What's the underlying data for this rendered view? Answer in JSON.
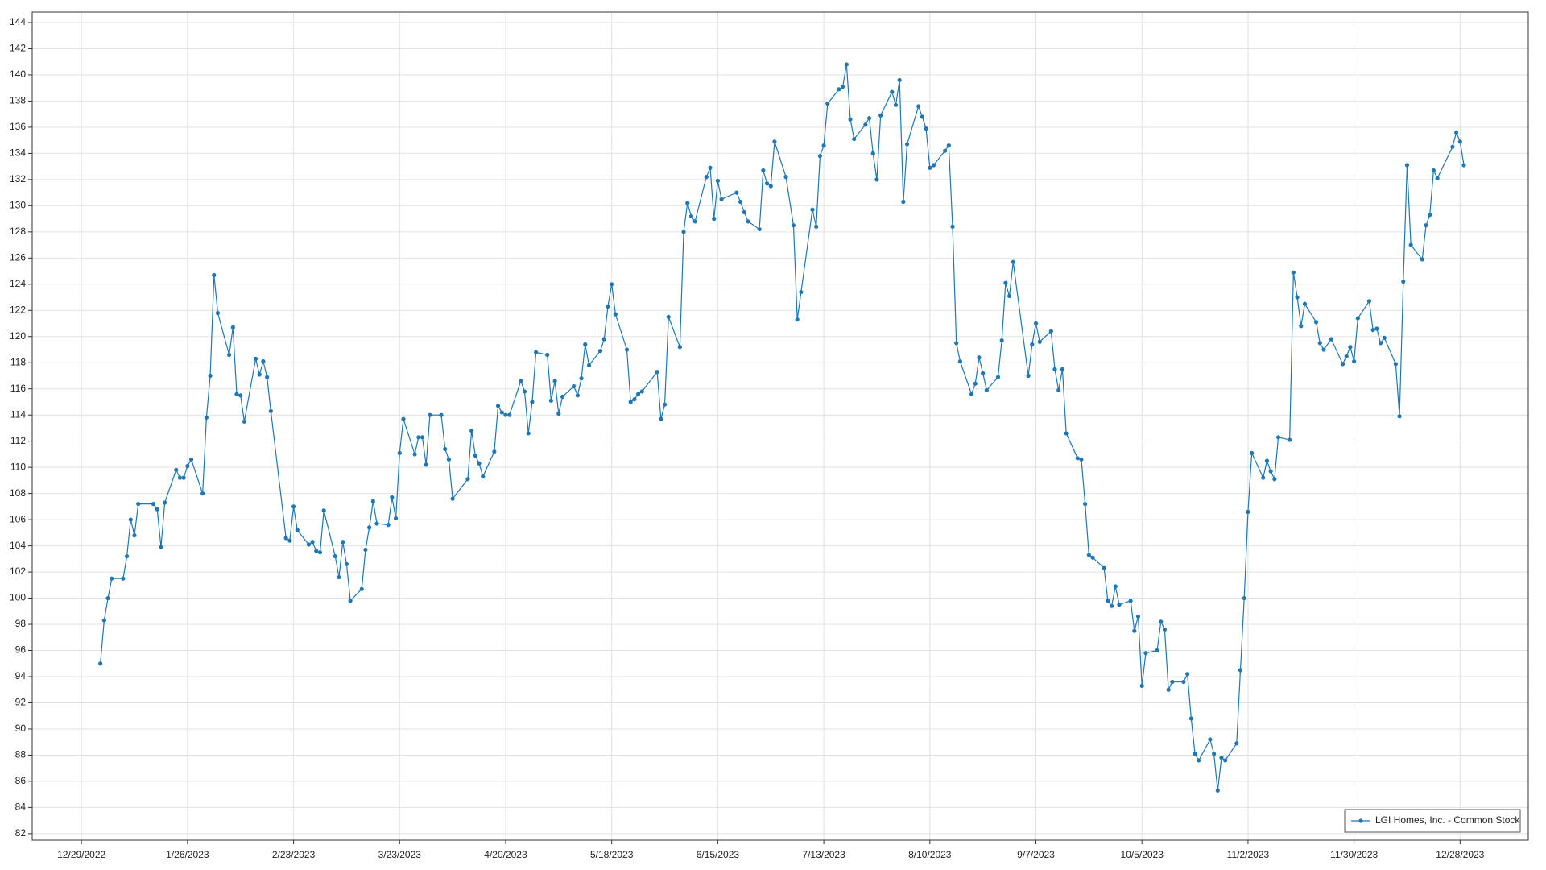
{
  "chart_data": {
    "type": "line",
    "x": [
      "1/3/2023",
      "1/4/2023",
      "1/5/2023",
      "1/6/2023",
      "1/9/2023",
      "1/10/2023",
      "1/11/2023",
      "1/12/2023",
      "1/13/2023",
      "1/17/2023",
      "1/18/2023",
      "1/19/2023",
      "1/20/2023",
      "1/23/2023",
      "1/24/2023",
      "1/25/2023",
      "1/26/2023",
      "1/27/2023",
      "1/30/2023",
      "1/31/2023",
      "2/1/2023",
      "2/2/2023",
      "2/3/2023",
      "2/6/2023",
      "2/7/2023",
      "2/8/2023",
      "2/9/2023",
      "2/10/2023",
      "2/13/2023",
      "2/14/2023",
      "2/15/2023",
      "2/16/2023",
      "2/17/2023",
      "2/21/2023",
      "2/22/2023",
      "2/23/2023",
      "2/24/2023",
      "2/27/2023",
      "2/28/2023",
      "3/1/2023",
      "3/2/2023",
      "3/3/2023",
      "3/6/2023",
      "3/7/2023",
      "3/8/2023",
      "3/9/2023",
      "3/10/2023",
      "3/13/2023",
      "3/14/2023",
      "3/15/2023",
      "3/16/2023",
      "3/17/2023",
      "3/20/2023",
      "3/21/2023",
      "3/22/2023",
      "3/23/2023",
      "3/24/2023",
      "3/27/2023",
      "3/28/2023",
      "3/29/2023",
      "3/30/2023",
      "3/31/2023",
      "4/3/2023",
      "4/4/2023",
      "4/5/2023",
      "4/6/2023",
      "4/10/2023",
      "4/11/2023",
      "4/12/2023",
      "4/13/2023",
      "4/14/2023",
      "4/17/2023",
      "4/18/2023",
      "4/19/2023",
      "4/20/2023",
      "4/21/2023",
      "4/24/2023",
      "4/25/2023",
      "4/26/2023",
      "4/27/2023",
      "4/28/2023",
      "5/1/2023",
      "5/2/2023",
      "5/3/2023",
      "5/4/2023",
      "5/5/2023",
      "5/8/2023",
      "5/9/2023",
      "5/10/2023",
      "5/11/2023",
      "5/12/2023",
      "5/15/2023",
      "5/16/2023",
      "5/17/2023",
      "5/18/2023",
      "5/19/2023",
      "5/22/2023",
      "5/23/2023",
      "5/24/2023",
      "5/25/2023",
      "5/26/2023",
      "5/30/2023",
      "5/31/2023",
      "6/1/2023",
      "6/2/2023",
      "6/5/2023",
      "6/6/2023",
      "6/7/2023",
      "6/8/2023",
      "6/9/2023",
      "6/12/2023",
      "6/13/2023",
      "6/14/2023",
      "6/15/2023",
      "6/16/2023",
      "6/20/2023",
      "6/21/2023",
      "6/22/2023",
      "6/23/2023",
      "6/26/2023",
      "6/27/2023",
      "6/28/2023",
      "6/29/2023",
      "6/30/2023",
      "7/3/2023",
      "7/5/2023",
      "7/6/2023",
      "7/7/2023",
      "7/10/2023",
      "7/11/2023",
      "7/12/2023",
      "7/13/2023",
      "7/14/2023",
      "7/17/2023",
      "7/18/2023",
      "7/19/2023",
      "7/20/2023",
      "7/21/2023",
      "7/24/2023",
      "7/25/2023",
      "7/26/2023",
      "7/27/2023",
      "7/28/2023",
      "7/31/2023",
      "8/1/2023",
      "8/2/2023",
      "8/3/2023",
      "8/4/2023",
      "8/7/2023",
      "8/8/2023",
      "8/9/2023",
      "8/10/2023",
      "8/11/2023",
      "8/14/2023",
      "8/15/2023",
      "8/16/2023",
      "8/17/2023",
      "8/18/2023",
      "8/21/2023",
      "8/22/2023",
      "8/23/2023",
      "8/24/2023",
      "8/25/2023",
      "8/28/2023",
      "8/29/2023",
      "8/30/2023",
      "8/31/2023",
      "9/1/2023",
      "9/5/2023",
      "9/6/2023",
      "9/7/2023",
      "9/8/2023",
      "9/11/2023",
      "9/12/2023",
      "9/13/2023",
      "9/14/2023",
      "9/15/2023",
      "9/18/2023",
      "9/19/2023",
      "9/20/2023",
      "9/21/2023",
      "9/22/2023",
      "9/25/2023",
      "9/26/2023",
      "9/27/2023",
      "9/28/2023",
      "9/29/2023",
      "10/2/2023",
      "10/3/2023",
      "10/4/2023",
      "10/5/2023",
      "10/6/2023",
      "10/9/2023",
      "10/10/2023",
      "10/11/2023",
      "10/12/2023",
      "10/13/2023",
      "10/16/2023",
      "10/17/2023",
      "10/18/2023",
      "10/19/2023",
      "10/20/2023",
      "10/23/2023",
      "10/24/2023",
      "10/25/2023",
      "10/26/2023",
      "10/27/2023",
      "10/30/2023",
      "10/31/2023",
      "11/1/2023",
      "11/2/2023",
      "11/3/2023",
      "11/6/2023",
      "11/7/2023",
      "11/8/2023",
      "11/9/2023",
      "11/10/2023",
      "11/13/2023",
      "11/14/2023",
      "11/15/2023",
      "11/16/2023",
      "11/17/2023",
      "11/20/2023",
      "11/21/2023",
      "11/22/2023",
      "11/24/2023",
      "11/27/2023",
      "11/28/2023",
      "11/29/2023",
      "11/30/2023",
      "12/1/2023",
      "12/4/2023",
      "12/5/2023",
      "12/6/2023",
      "12/7/2023",
      "12/8/2023",
      "12/11/2023",
      "12/12/2023",
      "12/13/2023",
      "12/14/2023",
      "12/15/2023",
      "12/18/2023",
      "12/19/2023",
      "12/20/2023",
      "12/21/2023",
      "12/22/2023",
      "12/26/2023",
      "12/27/2023",
      "12/28/2023",
      "12/29/2023"
    ],
    "series": [
      {
        "name": "LGI Homes, Inc. - Common Stock",
        "color": "#1f77b4",
        "values": [
          95.0,
          98.3,
          100.0,
          101.5,
          101.5,
          103.2,
          106.0,
          104.8,
          107.2,
          107.2,
          106.8,
          103.9,
          107.3,
          109.8,
          109.2,
          109.2,
          110.1,
          110.6,
          108.0,
          113.8,
          117.0,
          124.7,
          121.8,
          118.6,
          120.7,
          115.6,
          115.5,
          113.5,
          118.3,
          117.1,
          118.1,
          116.9,
          114.3,
          104.6,
          104.4,
          107.0,
          105.2,
          104.1,
          104.3,
          103.6,
          103.5,
          106.7,
          103.2,
          101.6,
          104.3,
          102.6,
          99.8,
          100.7,
          103.7,
          105.4,
          107.4,
          105.7,
          105.6,
          107.7,
          106.1,
          111.1,
          113.7,
          111.0,
          112.3,
          112.3,
          110.2,
          114.0,
          114.0,
          111.4,
          110.6,
          107.6,
          109.1,
          112.8,
          110.9,
          110.3,
          109.3,
          111.2,
          114.7,
          114.2,
          114.0,
          114.0,
          116.6,
          115.8,
          112.6,
          115.0,
          118.8,
          118.6,
          115.1,
          116.6,
          114.1,
          115.4,
          116.2,
          115.5,
          116.8,
          119.4,
          117.8,
          118.9,
          119.8,
          122.3,
          124.0,
          121.7,
          119.0,
          115.0,
          115.2,
          115.6,
          115.8,
          117.3,
          113.7,
          114.8,
          121.5,
          119.2,
          128.0,
          130.2,
          129.2,
          128.8,
          132.2,
          132.9,
          129.0,
          131.9,
          130.5,
          131.0,
          130.3,
          129.5,
          128.8,
          128.2,
          132.7,
          131.7,
          131.5,
          134.9,
          132.2,
          128.5,
          121.3,
          123.4,
          129.7,
          128.4,
          133.8,
          134.6,
          137.8,
          138.9,
          139.1,
          140.8,
          136.6,
          135.1,
          136.2,
          136.7,
          134.0,
          132.0,
          136.9,
          138.7,
          137.7,
          139.6,
          130.3,
          134.7,
          137.6,
          136.8,
          135.9,
          132.9,
          133.1,
          134.2,
          134.6,
          128.4,
          119.5,
          118.1,
          115.6,
          116.4,
          118.4,
          117.2,
          115.9,
          116.9,
          119.7,
          124.1,
          123.1,
          125.7,
          117.0,
          119.4,
          121.0,
          119.6,
          120.4,
          117.5,
          115.9,
          117.5,
          112.6,
          110.7,
          110.6,
          107.2,
          103.3,
          103.1,
          102.3,
          99.8,
          99.4,
          100.9,
          99.5,
          99.8,
          97.5,
          98.6,
          93.3,
          95.8,
          96.0,
          98.2,
          97.6,
          93.0,
          93.6,
          93.6,
          94.2,
          90.8,
          88.1,
          87.6,
          89.2,
          88.1,
          85.3,
          87.8,
          87.6,
          88.9,
          94.5,
          100.0,
          106.6,
          111.1,
          109.2,
          110.5,
          109.7,
          109.1,
          112.3,
          112.1,
          124.9,
          123.0,
          120.8,
          122.5,
          121.1,
          119.5,
          119.0,
          119.8,
          117.9,
          118.5,
          119.2,
          118.1,
          121.4,
          122.7,
          120.5,
          120.6,
          119.5,
          119.9,
          117.9,
          113.9,
          124.2,
          133.1,
          127.0,
          125.9,
          128.5,
          129.3,
          132.7,
          132.1,
          134.5,
          135.6,
          134.9,
          133.1
        ]
      }
    ],
    "xlim": [
      "12/16/2022",
      "1/15/2024"
    ],
    "xticks": [
      "12/29/2022",
      "1/26/2023",
      "2/23/2023",
      "3/23/2023",
      "4/20/2023",
      "5/18/2023",
      "6/15/2023",
      "7/13/2023",
      "8/10/2023",
      "9/7/2023",
      "10/5/2023",
      "11/2/2023",
      "11/30/2023",
      "12/28/2023"
    ],
    "ylim": [
      81.5,
      144.8
    ],
    "yticks": [
      82,
      84,
      86,
      88,
      90,
      92,
      94,
      96,
      98,
      100,
      102,
      104,
      106,
      108,
      110,
      112,
      114,
      116,
      118,
      120,
      122,
      124,
      126,
      128,
      130,
      132,
      134,
      136,
      138,
      140,
      142,
      144
    ],
    "grid": true,
    "legend": "bottom-right"
  }
}
